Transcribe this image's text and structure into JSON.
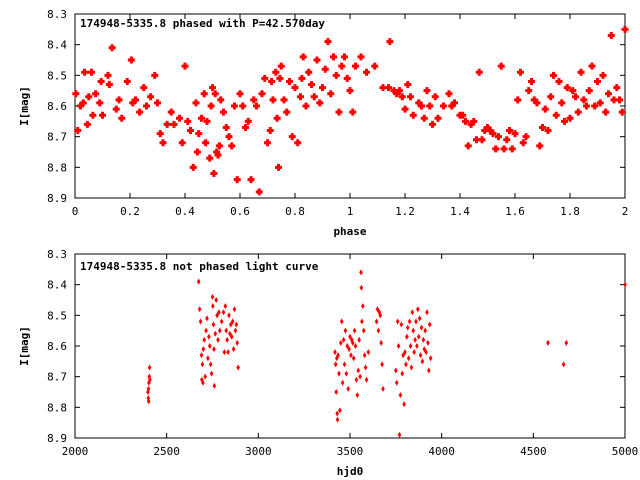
{
  "colors": {
    "points": "#ff0000",
    "axes": "#000000",
    "background": "#ffffff"
  },
  "chart_data": [
    {
      "type": "scatter",
      "title": "174948-5335.8 phased with P=42.570day",
      "xlabel": "phase",
      "ylabel": "I[mag]",
      "xlim": [
        0,
        2
      ],
      "ylim": [
        8.3,
        8.9
      ],
      "y_inverted": true,
      "grid": false,
      "marker": "filled-cross",
      "x_ticks": [
        "0",
        "0.2",
        "0.4",
        "0.6",
        "0.8",
        "1",
        "1.2",
        "1.4",
        "1.6",
        "1.8",
        "2"
      ],
      "y_ticks": [
        "8.3",
        "8.4",
        "8.5",
        "8.6",
        "8.7",
        "8.8",
        "8.9"
      ],
      "points": [
        [
          0.003,
          8.56
        ],
        [
          0.01,
          8.68
        ],
        [
          0.02,
          8.6
        ],
        [
          0.03,
          8.59
        ],
        [
          0.035,
          8.49
        ],
        [
          0.045,
          8.66
        ],
        [
          0.05,
          8.57
        ],
        [
          0.06,
          8.49
        ],
        [
          0.065,
          8.63
        ],
        [
          0.075,
          8.56
        ],
        [
          0.09,
          8.59
        ],
        [
          0.095,
          8.52
        ],
        [
          0.1,
          8.63
        ],
        [
          0.12,
          8.5
        ],
        [
          0.125,
          8.53
        ],
        [
          0.135,
          8.41
        ],
        [
          0.15,
          8.61
        ],
        [
          0.16,
          8.58
        ],
        [
          0.17,
          8.64
        ],
        [
          0.19,
          8.52
        ],
        [
          0.205,
          8.45
        ],
        [
          0.21,
          8.59
        ],
        [
          0.22,
          8.58
        ],
        [
          0.235,
          8.62
        ],
        [
          0.25,
          8.54
        ],
        [
          0.26,
          8.6
        ],
        [
          0.275,
          8.57
        ],
        [
          0.29,
          8.5
        ],
        [
          0.3,
          8.59
        ],
        [
          0.31,
          8.69
        ],
        [
          0.32,
          8.72
        ],
        [
          0.335,
          8.66
        ],
        [
          0.35,
          8.62
        ],
        [
          0.36,
          8.66
        ],
        [
          0.38,
          8.64
        ],
        [
          0.39,
          8.72
        ],
        [
          0.4,
          8.47
        ],
        [
          0.41,
          8.65
        ],
        [
          0.42,
          8.68
        ],
        [
          0.43,
          8.8
        ],
        [
          0.44,
          8.59
        ],
        [
          0.445,
          8.75
        ],
        [
          0.45,
          8.69
        ],
        [
          0.46,
          8.64
        ],
        [
          0.47,
          8.56
        ],
        [
          0.475,
          8.72
        ],
        [
          0.48,
          8.65
        ],
        [
          0.49,
          8.77
        ],
        [
          0.495,
          8.6
        ],
        [
          0.5,
          8.54
        ],
        [
          0.505,
          8.82
        ],
        [
          0.51,
          8.56
        ],
        [
          0.515,
          8.75
        ],
        [
          0.52,
          8.76
        ],
        [
          0.525,
          8.73
        ],
        [
          0.53,
          8.58
        ],
        [
          0.54,
          8.62
        ],
        [
          0.55,
          8.67
        ],
        [
          0.56,
          8.7
        ],
        [
          0.57,
          8.73
        ],
        [
          0.58,
          8.6
        ],
        [
          0.59,
          8.84
        ],
        [
          0.6,
          8.56
        ],
        [
          0.61,
          8.6
        ],
        [
          0.62,
          8.67
        ],
        [
          0.63,
          8.65
        ],
        [
          0.64,
          8.84
        ],
        [
          0.65,
          8.58
        ],
        [
          0.66,
          8.6
        ],
        [
          0.67,
          8.88
        ],
        [
          0.68,
          8.56
        ],
        [
          0.69,
          8.51
        ],
        [
          0.7,
          8.72
        ],
        [
          0.71,
          8.68
        ],
        [
          0.715,
          8.52
        ],
        [
          0.72,
          8.58
        ],
        [
          0.73,
          8.49
        ],
        [
          0.735,
          8.64
        ],
        [
          0.74,
          8.8
        ],
        [
          0.745,
          8.51
        ],
        [
          0.75,
          8.47
        ],
        [
          0.76,
          8.58
        ],
        [
          0.77,
          8.62
        ],
        [
          0.78,
          8.52
        ],
        [
          0.79,
          8.7
        ],
        [
          0.8,
          8.54
        ],
        [
          0.81,
          8.72
        ],
        [
          0.82,
          8.57
        ],
        [
          0.825,
          8.51
        ],
        [
          0.83,
          8.44
        ],
        [
          0.84,
          8.6
        ],
        [
          0.85,
          8.49
        ],
        [
          0.86,
          8.53
        ],
        [
          0.87,
          8.57
        ],
        [
          0.88,
          8.45
        ],
        [
          0.89,
          8.59
        ],
        [
          0.9,
          8.54
        ],
        [
          0.91,
          8.48
        ],
        [
          0.92,
          8.39
        ],
        [
          0.93,
          8.56
        ],
        [
          0.94,
          8.44
        ],
        [
          0.95,
          8.5
        ],
        [
          0.96,
          8.62
        ],
        [
          0.97,
          8.47
        ],
        [
          0.98,
          8.44
        ],
        [
          0.99,
          8.51
        ],
        [
          1.0,
          8.55
        ],
        [
          1.01,
          8.62
        ],
        [
          1.02,
          8.47
        ],
        [
          1.04,
          8.44
        ],
        [
          1.06,
          8.49
        ],
        [
          1.09,
          8.47
        ],
        [
          1.12,
          8.54
        ],
        [
          1.14,
          8.54
        ],
        [
          1.145,
          8.39
        ],
        [
          1.16,
          8.55
        ],
        [
          1.17,
          8.56
        ],
        [
          1.18,
          8.55
        ],
        [
          1.19,
          8.57
        ],
        [
          1.2,
          8.61
        ],
        [
          1.21,
          8.53
        ],
        [
          1.22,
          8.57
        ],
        [
          1.23,
          8.63
        ],
        [
          1.25,
          8.59
        ],
        [
          1.26,
          8.6
        ],
        [
          1.27,
          8.64
        ],
        [
          1.28,
          8.55
        ],
        [
          1.29,
          8.6
        ],
        [
          1.3,
          8.66
        ],
        [
          1.31,
          8.57
        ],
        [
          1.32,
          8.64
        ],
        [
          1.34,
          8.6
        ],
        [
          1.36,
          8.56
        ],
        [
          1.37,
          8.6
        ],
        [
          1.38,
          8.59
        ],
        [
          1.4,
          8.63
        ],
        [
          1.41,
          8.63
        ],
        [
          1.42,
          8.65
        ],
        [
          1.43,
          8.73
        ],
        [
          1.44,
          8.66
        ],
        [
          1.45,
          8.65
        ],
        [
          1.46,
          8.71
        ],
        [
          1.47,
          8.49
        ],
        [
          1.48,
          8.71
        ],
        [
          1.49,
          8.68
        ],
        [
          1.5,
          8.67
        ],
        [
          1.51,
          8.68
        ],
        [
          1.52,
          8.69
        ],
        [
          1.53,
          8.74
        ],
        [
          1.54,
          8.7
        ],
        [
          1.55,
          8.47
        ],
        [
          1.56,
          8.74
        ],
        [
          1.57,
          8.71
        ],
        [
          1.58,
          8.68
        ],
        [
          1.59,
          8.74
        ],
        [
          1.6,
          8.69
        ],
        [
          1.61,
          8.58
        ],
        [
          1.62,
          8.49
        ],
        [
          1.63,
          8.72
        ],
        [
          1.64,
          8.7
        ],
        [
          1.65,
          8.55
        ],
        [
          1.66,
          8.52
        ],
        [
          1.67,
          8.58
        ],
        [
          1.68,
          8.59
        ],
        [
          1.69,
          8.73
        ],
        [
          1.7,
          8.67
        ],
        [
          1.71,
          8.61
        ],
        [
          1.72,
          8.68
        ],
        [
          1.73,
          8.57
        ],
        [
          1.74,
          8.5
        ],
        [
          1.75,
          8.63
        ],
        [
          1.76,
          8.52
        ],
        [
          1.77,
          8.59
        ],
        [
          1.78,
          8.65
        ],
        [
          1.79,
          8.54
        ],
        [
          1.8,
          8.64
        ],
        [
          1.81,
          8.55
        ],
        [
          1.82,
          8.57
        ],
        [
          1.83,
          8.62
        ],
        [
          1.84,
          8.49
        ],
        [
          1.85,
          8.58
        ],
        [
          1.86,
          8.6
        ],
        [
          1.87,
          8.55
        ],
        [
          1.88,
          8.47
        ],
        [
          1.89,
          8.6
        ],
        [
          1.9,
          8.52
        ],
        [
          1.91,
          8.59
        ],
        [
          1.92,
          8.5
        ],
        [
          1.93,
          8.62
        ],
        [
          1.94,
          8.56
        ],
        [
          1.95,
          8.37
        ],
        [
          1.96,
          8.58
        ],
        [
          1.97,
          8.54
        ],
        [
          1.98,
          8.58
        ],
        [
          1.99,
          8.62
        ],
        [
          2.0,
          8.35
        ]
      ]
    },
    {
      "type": "scatter",
      "title": "174948-5335.8 not phased light curve",
      "xlabel": "hjd0",
      "ylabel": "I[mag]",
      "xlim": [
        2000,
        5000
      ],
      "ylim": [
        8.3,
        8.9
      ],
      "y_inverted": true,
      "grid": false,
      "marker": "small-diamond",
      "x_ticks": [
        "2000",
        "2500",
        "3000",
        "3500",
        "4000",
        "4500",
        "5000"
      ],
      "y_ticks": [
        "8.3",
        "8.4",
        "8.5",
        "8.6",
        "8.7",
        "8.8",
        "8.9"
      ],
      "points": [
        [
          2398,
          8.75
        ],
        [
          2400,
          8.77
        ],
        [
          2401,
          8.74
        ],
        [
          2402,
          8.78
        ],
        [
          2403,
          8.72
        ],
        [
          2405,
          8.7
        ],
        [
          2407,
          8.67
        ],
        [
          2409,
          8.71
        ],
        [
          2675,
          8.39
        ],
        [
          2680,
          8.48
        ],
        [
          2685,
          8.52
        ],
        [
          2690,
          8.63
        ],
        [
          2692,
          8.71
        ],
        [
          2695,
          8.66
        ],
        [
          2698,
          8.72
        ],
        [
          2700,
          8.61
        ],
        [
          2705,
          8.58
        ],
        [
          2710,
          8.7
        ],
        [
          2715,
          8.55
        ],
        [
          2720,
          8.51
        ],
        [
          2725,
          8.64
        ],
        [
          2730,
          8.57
        ],
        [
          2735,
          8.6
        ],
        [
          2740,
          8.66
        ],
        [
          2745,
          8.69
        ],
        [
          2750,
          8.44
        ],
        [
          2752,
          8.47
        ],
        [
          2755,
          8.53
        ],
        [
          2758,
          8.61
        ],
        [
          2760,
          8.73
        ],
        [
          2765,
          8.56
        ],
        [
          2770,
          8.45
        ],
        [
          2775,
          8.5
        ],
        [
          2780,
          8.58
        ],
        [
          2785,
          8.49
        ],
        [
          2790,
          8.55
        ],
        [
          2800,
          8.52
        ],
        [
          2810,
          8.49
        ],
        [
          2815,
          8.62
        ],
        [
          2820,
          8.47
        ],
        [
          2825,
          8.55
        ],
        [
          2830,
          8.58
        ],
        [
          2835,
          8.62
        ],
        [
          2840,
          8.5
        ],
        [
          2845,
          8.56
        ],
        [
          2850,
          8.53
        ],
        [
          2855,
          8.57
        ],
        [
          2860,
          8.52
        ],
        [
          2865,
          8.61
        ],
        [
          2870,
          8.48
        ],
        [
          2875,
          8.55
        ],
        [
          2880,
          8.53
        ],
        [
          2885,
          8.59
        ],
        [
          2890,
          8.67
        ],
        [
          3418,
          8.62
        ],
        [
          3422,
          8.66
        ],
        [
          3425,
          8.75
        ],
        [
          3428,
          8.64
        ],
        [
          3430,
          8.82
        ],
        [
          3432,
          8.84
        ],
        [
          3435,
          8.63
        ],
        [
          3440,
          8.69
        ],
        [
          3445,
          8.81
        ],
        [
          3450,
          8.59
        ],
        [
          3455,
          8.52
        ],
        [
          3460,
          8.72
        ],
        [
          3465,
          8.58
        ],
        [
          3470,
          8.66
        ],
        [
          3475,
          8.55
        ],
        [
          3480,
          8.69
        ],
        [
          3485,
          8.6
        ],
        [
          3490,
          8.74
        ],
        [
          3495,
          8.61
        ],
        [
          3500,
          8.57
        ],
        [
          3505,
          8.63
        ],
        [
          3510,
          8.58
        ],
        [
          3515,
          8.59
        ],
        [
          3520,
          8.64
        ],
        [
          3525,
          8.55
        ],
        [
          3530,
          8.6
        ],
        [
          3535,
          8.71
        ],
        [
          3540,
          8.76
        ],
        [
          3545,
          8.68
        ],
        [
          3550,
          8.58
        ],
        [
          3555,
          8.7
        ],
        [
          3560,
          8.36
        ],
        [
          3562,
          8.41
        ],
        [
          3565,
          8.52
        ],
        [
          3570,
          8.47
        ],
        [
          3575,
          8.55
        ],
        [
          3580,
          8.63
        ],
        [
          3585,
          8.67
        ],
        [
          3590,
          8.71
        ],
        [
          3600,
          8.62
        ],
        [
          3645,
          8.52
        ],
        [
          3650,
          8.48
        ],
        [
          3655,
          8.55
        ],
        [
          3660,
          8.49
        ],
        [
          3665,
          8.5
        ],
        [
          3670,
          8.59
        ],
        [
          3675,
          8.66
        ],
        [
          3680,
          8.74
        ],
        [
          3750,
          8.68
        ],
        [
          3755,
          8.72
        ],
        [
          3760,
          8.52
        ],
        [
          3765,
          8.6
        ],
        [
          3770,
          8.89
        ],
        [
          3775,
          8.76
        ],
        [
          3780,
          8.53
        ],
        [
          3785,
          8.69
        ],
        [
          3790,
          8.63
        ],
        [
          3795,
          8.79
        ],
        [
          3800,
          8.62
        ],
        [
          3805,
          8.66
        ],
        [
          3810,
          8.57
        ],
        [
          3815,
          8.54
        ],
        [
          3820,
          8.64
        ],
        [
          3825,
          8.52
        ],
        [
          3830,
          8.6
        ],
        [
          3835,
          8.67
        ],
        [
          3840,
          8.49
        ],
        [
          3845,
          8.55
        ],
        [
          3850,
          8.62
        ],
        [
          3855,
          8.58
        ],
        [
          3860,
          8.52
        ],
        [
          3865,
          8.6
        ],
        [
          3870,
          8.48
        ],
        [
          3875,
          8.57
        ],
        [
          3880,
          8.51
        ],
        [
          3885,
          8.63
        ],
        [
          3890,
          8.54
        ],
        [
          3895,
          8.65
        ],
        [
          3900,
          8.58
        ],
        [
          3905,
          8.61
        ],
        [
          3910,
          8.55
        ],
        [
          3915,
          8.62
        ],
        [
          3920,
          8.49
        ],
        [
          3925,
          8.59
        ],
        [
          3930,
          8.68
        ],
        [
          3935,
          8.53
        ],
        [
          3940,
          8.64
        ],
        [
          4580,
          8.59
        ],
        [
          4665,
          8.66
        ],
        [
          4680,
          8.59
        ],
        [
          5000,
          8.4
        ]
      ]
    }
  ]
}
